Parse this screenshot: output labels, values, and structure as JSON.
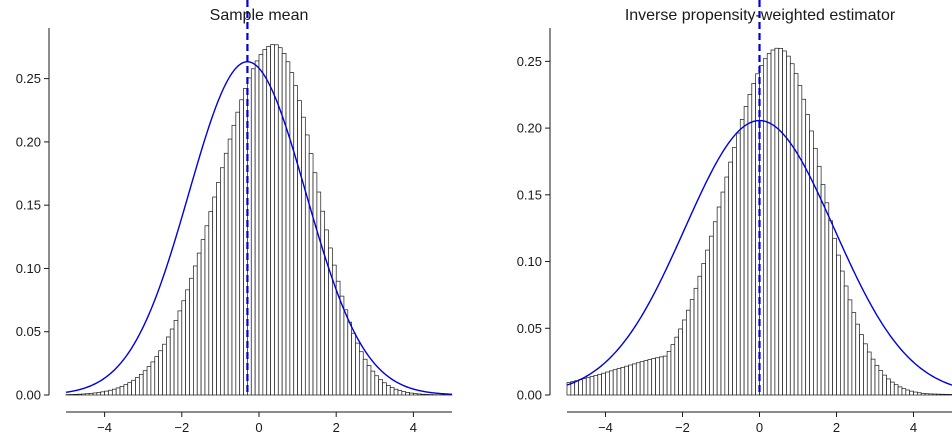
{
  "chart_data": [
    {
      "type": "histogram",
      "title": "Sample mean",
      "xlabel": "",
      "ylabel": "",
      "xlim": [
        -5,
        5
      ],
      "ylim": [
        0,
        0.29
      ],
      "x_ticks": [
        -4,
        -2,
        0,
        2,
        4
      ],
      "y_ticks": [
        0.0,
        0.05,
        0.1,
        0.15,
        0.2,
        0.25
      ],
      "x_tick_labels": [
        "−4",
        "−2",
        "0",
        "2",
        "4"
      ],
      "y_tick_labels": [
        "0.00",
        "0.05",
        "0.10",
        "0.15",
        "0.20",
        "0.25"
      ],
      "grid": false,
      "bin_width": 0.1,
      "histogram": {
        "center": 0.4,
        "sd_left": 1.45,
        "sd_right": 1.1,
        "peak": 0.277
      },
      "normal_curve": {
        "mean": -0.3,
        "sd": 1.515,
        "color": "#0000dd"
      },
      "vline": {
        "x": -0.3,
        "style": "dashed",
        "color": "#0000dd"
      },
      "bar_fill": "#ffffff",
      "bar_edge": "#1a1a1a"
    },
    {
      "type": "histogram",
      "title": "Inverse propensity-weighted estimator",
      "xlabel": "",
      "ylabel": "",
      "xlim": [
        -5,
        5
      ],
      "ylim": [
        0,
        0.275
      ],
      "x_ticks": [
        -4,
        -2,
        0,
        2,
        4
      ],
      "y_ticks": [
        0.0,
        0.05,
        0.1,
        0.15,
        0.2,
        0.25
      ],
      "x_tick_labels": [
        "−4",
        "−2",
        "0",
        "2",
        "4"
      ],
      "y_tick_labels": [
        "0.00",
        "0.05",
        "0.10",
        "0.15",
        "0.20",
        "0.25"
      ],
      "grid": false,
      "bin_width": 0.1,
      "histogram": {
        "center": 0.5,
        "sd_left": 1.4,
        "sd_right": 1.15,
        "peak": 0.26,
        "tail_center": -1.5,
        "tail_sd": 2.2,
        "tail_height": 0.032
      },
      "normal_curve": {
        "mean": 0.0,
        "sd": 1.94,
        "color": "#0000dd"
      },
      "vline": {
        "x": 0.0,
        "style": "dashed",
        "color": "#0000dd"
      },
      "bar_fill": "#ffffff",
      "bar_edge": "#1a1a1a"
    }
  ]
}
